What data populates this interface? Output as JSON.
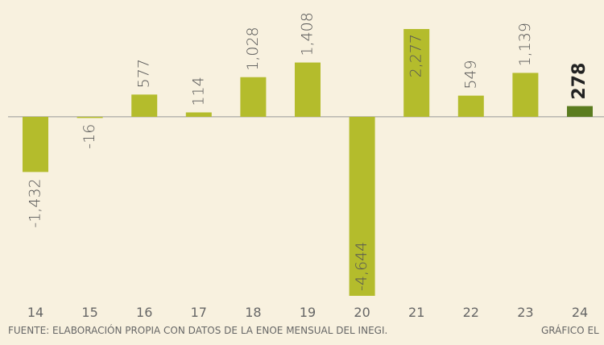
{
  "chart_data": {
    "type": "bar",
    "categories": [
      "14",
      "15",
      "16",
      "17",
      "18",
      "19",
      "20",
      "21",
      "22",
      "23",
      "24"
    ],
    "values": [
      -1432,
      -16,
      577,
      114,
      1028,
      1408,
      -4644,
      2277,
      549,
      1139,
      278
    ],
    "value_labels": [
      "-1,432",
      "-16",
      "577",
      "114",
      "1,028",
      "1,408",
      "-4,644",
      "2,277",
      "549",
      "1,139",
      "278"
    ],
    "color": "#b4bc2c",
    "highlight_color": "#5b7c1f",
    "highlight_index": 10,
    "footer_source": "FUENTE: ELABORACIÓN PROPIA CON DATOS DE LA ENOE MENSUAL DEL INEGI.",
    "footer_credit": "GRÁFICO EL"
  }
}
